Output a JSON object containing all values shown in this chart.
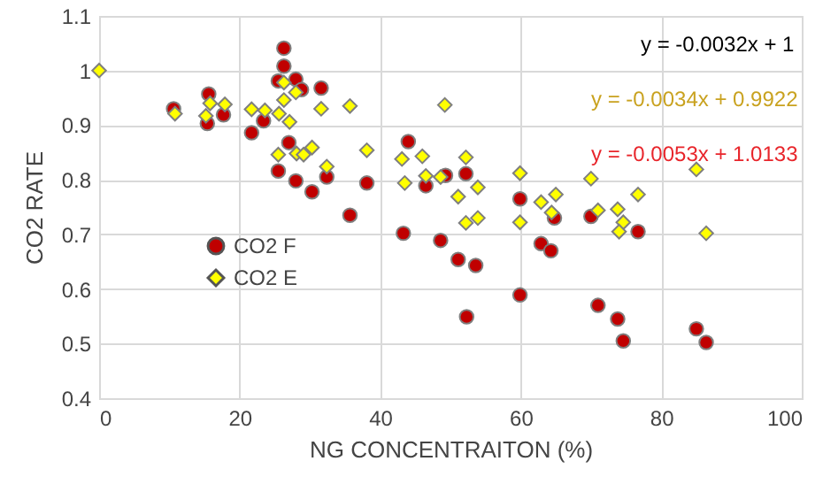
{
  "chart_data": {
    "type": "scatter",
    "xlabel": "NG CONCENTRAITON  (%)",
    "ylabel": "CO2 RATE",
    "xlim": [
      0,
      100
    ],
    "xticks": [
      0,
      20,
      40,
      60,
      80,
      100
    ],
    "ylim": [
      0.4,
      1.1
    ],
    "yticks": [
      0.4,
      0.5,
      0.6,
      0.7,
      0.8,
      0.9,
      1,
      1.1
    ],
    "grid": true,
    "legend": "bottom left",
    "annotations": [
      "y = -0.0032x + 1",
      "y = -0.0034x + 0.9922",
      "y = -0.0053x + 1.0133"
    ],
    "series": [
      {
        "name": "CO2 F",
        "color": "#c00000",
        "marker": "circle",
        "x": [
          10.6,
          15.6,
          15.4,
          17.7,
          21.7,
          23.4,
          26.3,
          26.3,
          25.5,
          28.0,
          28.8,
          31.6,
          27.0,
          25.5,
          28.0,
          30.3,
          32.4,
          44.0,
          46.5,
          49.3,
          52.2,
          35.7,
          38.1,
          43.3,
          48.6,
          51.1,
          53.6,
          52.3,
          59.9,
          59.9,
          62.9,
          64.3,
          64.8,
          70.0,
          76.7,
          71.0,
          73.8,
          74.6,
          85.0,
          86.4
        ],
        "values": [
          0.93,
          0.957,
          0.903,
          0.919,
          0.886,
          0.908,
          1.041,
          1.008,
          0.981,
          0.984,
          0.965,
          0.968,
          0.868,
          0.816,
          0.798,
          0.778,
          0.805,
          0.87,
          0.789,
          0.808,
          0.811,
          0.735,
          0.794,
          0.702,
          0.689,
          0.654,
          0.643,
          0.549,
          0.765,
          0.589,
          0.683,
          0.67,
          0.73,
          0.733,
          0.705,
          0.57,
          0.545,
          0.505,
          0.527,
          0.502
        ]
      },
      {
        "name": "CO2 E",
        "color": "#ffff00",
        "marker": "diamond",
        "x": [
          0,
          10.8,
          15.2,
          15.8,
          17.9,
          21.7,
          23.6,
          25.6,
          26.3,
          26.3,
          27.1,
          28.0,
          31.6,
          25.5,
          28.1,
          29.1,
          30.3,
          32.4,
          35.7,
          49.2,
          38.1,
          43.1,
          46.0,
          52.2,
          43.5,
          46.5,
          48.6,
          51.1,
          53.9,
          53.9,
          52.2,
          59.9,
          59.9,
          62.9,
          65.0,
          64.4,
          70.0,
          71.0,
          73.8,
          74.6,
          74.0,
          76.7,
          85.0,
          86.4
        ],
        "values": [
          1.0,
          0.921,
          0.917,
          0.94,
          0.938,
          0.929,
          0.927,
          0.921,
          0.978,
          0.946,
          0.906,
          0.96,
          0.93,
          0.846,
          0.848,
          0.846,
          0.859,
          0.824,
          0.935,
          0.937,
          0.854,
          0.838,
          0.843,
          0.841,
          0.794,
          0.807,
          0.805,
          0.769,
          0.786,
          0.73,
          0.721,
          0.812,
          0.722,
          0.759,
          0.773,
          0.74,
          0.802,
          0.744,
          0.746,
          0.722,
          0.705,
          0.773,
          0.819,
          0.702
        ]
      }
    ]
  }
}
